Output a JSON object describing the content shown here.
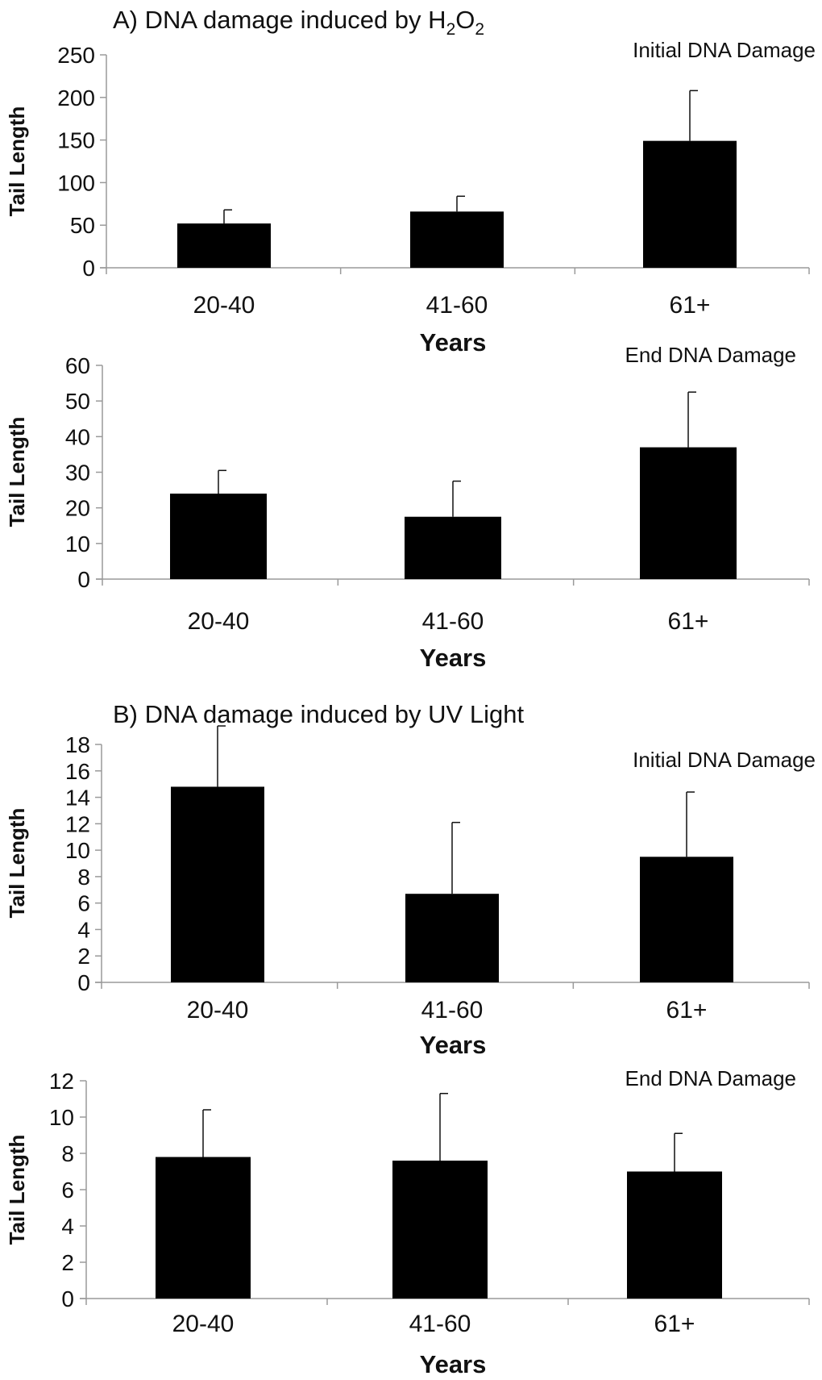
{
  "section_a": {
    "title": "A) DNA damage induced by H",
    "sub1": "2",
    "mid": "O",
    "sub2": "2"
  },
  "section_b": {
    "title": "B) DNA damage induced by UV Light"
  },
  "chart_data": [
    {
      "type": "bar",
      "title": "Initial DNA Damage",
      "xlabel": "Years",
      "ylabel": "Tail Length",
      "categories": [
        "20-40",
        "41-60",
        "61+"
      ],
      "values": [
        52,
        66,
        149
      ],
      "errors": [
        16,
        18,
        59
      ],
      "ylim": [
        0,
        250
      ],
      "yticks": [
        0,
        50,
        100,
        150,
        200,
        250
      ]
    },
    {
      "type": "bar",
      "title": "End DNA Damage",
      "xlabel": "Years",
      "ylabel": "Tail Length",
      "categories": [
        "20-40",
        "41-60",
        "61+"
      ],
      "values": [
        24,
        17.5,
        37
      ],
      "errors": [
        6.5,
        10,
        15.5
      ],
      "ylim": [
        0,
        60
      ],
      "yticks": [
        0,
        10,
        20,
        30,
        40,
        50,
        60
      ]
    },
    {
      "type": "bar",
      "title": "Initial DNA Damage",
      "xlabel": "Years",
      "ylabel": "Tail Length",
      "categories": [
        "20-40",
        "41-60",
        "61+"
      ],
      "values": [
        14.8,
        6.7,
        9.5
      ],
      "errors": [
        4.6,
        5.4,
        4.9
      ],
      "ylim": [
        0,
        18
      ],
      "yticks": [
        0,
        2,
        4,
        6,
        8,
        10,
        12,
        14,
        16,
        18
      ]
    },
    {
      "type": "bar",
      "title": "End DNA Damage",
      "xlabel": "Years",
      "ylabel": "Tail Length",
      "categories": [
        "20-40",
        "41-60",
        "61+"
      ],
      "values": [
        7.8,
        7.6,
        7.0
      ],
      "errors": [
        2.6,
        3.7,
        2.1
      ],
      "ylim": [
        0,
        12
      ],
      "yticks": [
        0,
        2,
        4,
        6,
        8,
        10,
        12
      ]
    }
  ]
}
